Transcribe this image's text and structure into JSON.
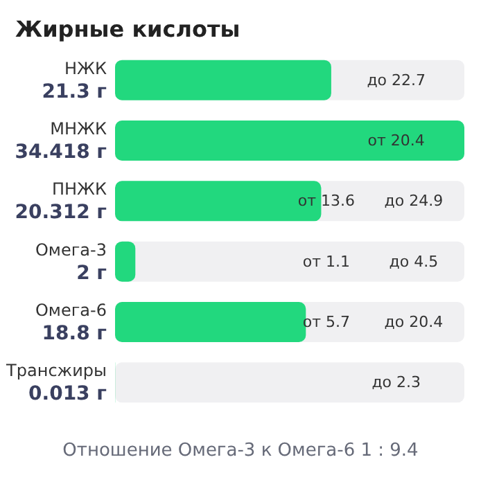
{
  "chart_data": {
    "type": "bar",
    "orientation": "horizontal",
    "title": "Жирные кислоты",
    "categories": [
      "НЖК",
      "МНЖК",
      "ПНЖК",
      "Омега-3",
      "Омега-6",
      "Трансжиры"
    ],
    "values": [
      21.3,
      34.418,
      20.312,
      2,
      18.8,
      0.013
    ],
    "value_labels": [
      "21.3 г",
      "34.418 г",
      "20.312 г",
      "2 г",
      "18.8 г",
      "0.013 г"
    ],
    "color": "#22d87e",
    "annotations": [
      "до 22.7",
      "от 20.4",
      "от 13.6",
      "до 24.9",
      "от 1.1",
      "до 4.5",
      "от 5.7",
      "до 20.4",
      "до 2.3",
      "Отношение Омега-3 к Омега-6 1 : 9.4"
    ]
  }
}
